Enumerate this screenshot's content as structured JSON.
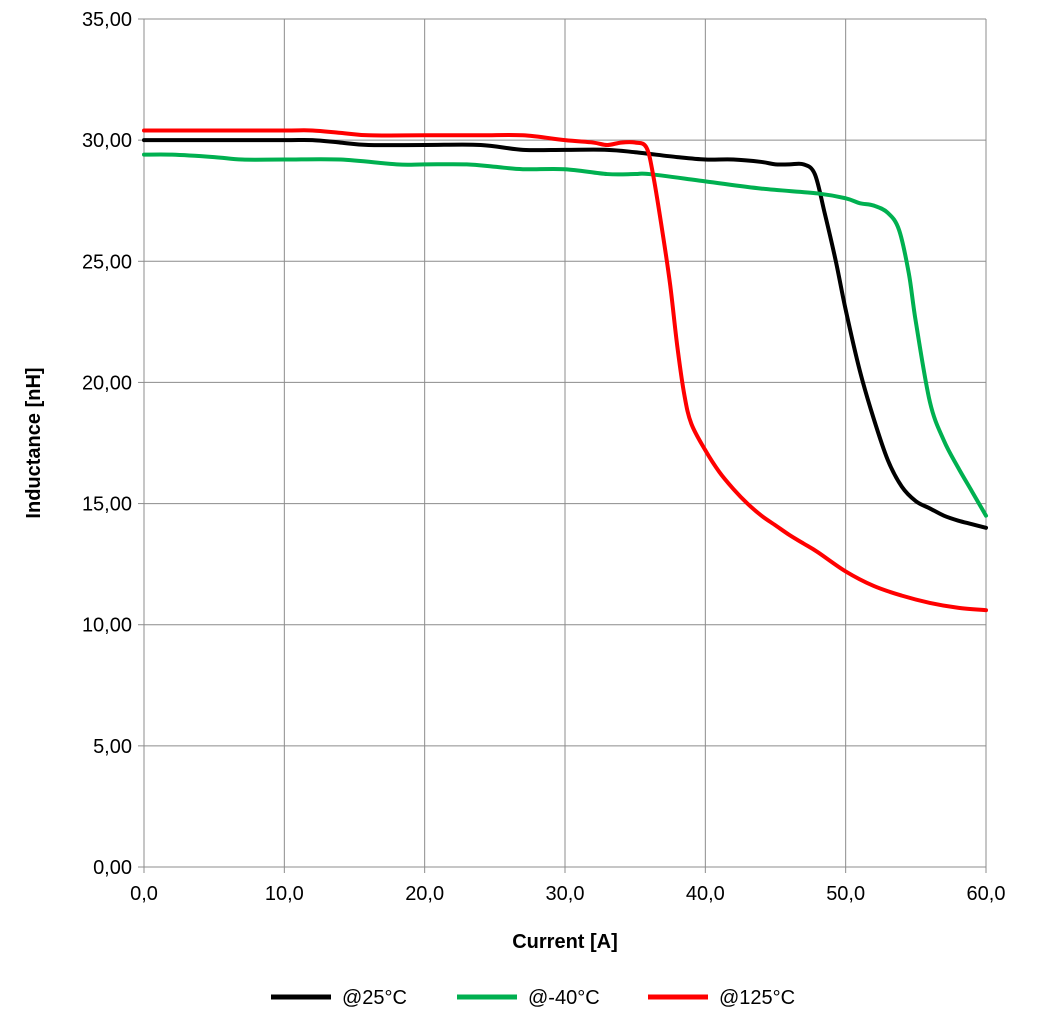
{
  "chart_data": {
    "type": "line",
    "title": "",
    "xlabel": "Current [A]",
    "ylabel": "Inductance [nH]",
    "xlim": [
      0,
      60
    ],
    "ylim": [
      0,
      35
    ],
    "xticks": [
      0,
      10,
      20,
      30,
      40,
      50,
      60
    ],
    "yticks": [
      0,
      5,
      10,
      15,
      20,
      25,
      30,
      35
    ],
    "xtick_labels": [
      "0,0",
      "10,0",
      "20,0",
      "30,0",
      "40,0",
      "50,0",
      "60,0"
    ],
    "ytick_labels": [
      "0,00",
      "5,00",
      "10,00",
      "15,00",
      "20,00",
      "25,00",
      "30,00",
      "35,00"
    ],
    "grid": true,
    "legend_position": "bottom",
    "series": [
      {
        "name": "@25°C",
        "color": "#000000",
        "x": [
          0,
          5,
          10,
          12,
          14,
          16,
          20,
          24,
          27,
          30,
          33,
          35,
          38,
          40,
          42,
          44,
          45,
          46,
          47,
          47.8,
          48.5,
          49.3,
          50,
          51,
          52,
          53,
          54,
          55,
          56,
          57,
          58,
          59,
          60
        ],
        "y": [
          30.0,
          30.0,
          30.0,
          30.0,
          29.9,
          29.8,
          29.8,
          29.8,
          29.6,
          29.6,
          29.6,
          29.5,
          29.3,
          29.2,
          29.2,
          29.1,
          29.0,
          29.0,
          29.0,
          28.6,
          27.0,
          25.0,
          23.0,
          20.5,
          18.5,
          16.8,
          15.7,
          15.1,
          14.8,
          14.5,
          14.3,
          14.15,
          14.0
        ]
      },
      {
        "name": "@-40°C",
        "color": "#00b050",
        "x": [
          0,
          2,
          5,
          7,
          10,
          14,
          18,
          20,
          23,
          25,
          27,
          30,
          33,
          35,
          36,
          40,
          44,
          48,
          50,
          51,
          52,
          53,
          53.8,
          54.5,
          55,
          56,
          57,
          58,
          59,
          60
        ],
        "y": [
          29.4,
          29.4,
          29.3,
          29.2,
          29.2,
          29.2,
          29.0,
          29.0,
          29.0,
          28.9,
          28.8,
          28.8,
          28.6,
          28.6,
          28.6,
          28.3,
          28.0,
          27.8,
          27.6,
          27.4,
          27.3,
          27.0,
          26.3,
          24.5,
          22.5,
          19.2,
          17.6,
          16.5,
          15.5,
          14.5
        ]
      },
      {
        "name": "@125°C",
        "color": "#ff0000",
        "x": [
          0,
          5,
          10,
          12,
          14,
          16,
          20,
          24,
          27,
          30,
          32,
          33,
          34,
          35,
          35.8,
          36.3,
          37,
          37.5,
          38,
          38.5,
          39,
          40,
          41,
          42,
          43,
          44,
          45,
          46,
          47,
          48,
          50,
          52,
          54,
          56,
          58,
          60
        ],
        "y": [
          30.4,
          30.4,
          30.4,
          30.4,
          30.3,
          30.2,
          30.2,
          30.2,
          30.2,
          30.0,
          29.9,
          29.8,
          29.9,
          29.9,
          29.7,
          28.5,
          26.0,
          24.0,
          21.5,
          19.5,
          18.3,
          17.2,
          16.3,
          15.6,
          15.0,
          14.5,
          14.1,
          13.7,
          13.35,
          13.0,
          12.2,
          11.6,
          11.2,
          10.9,
          10.7,
          10.6
        ]
      }
    ]
  }
}
